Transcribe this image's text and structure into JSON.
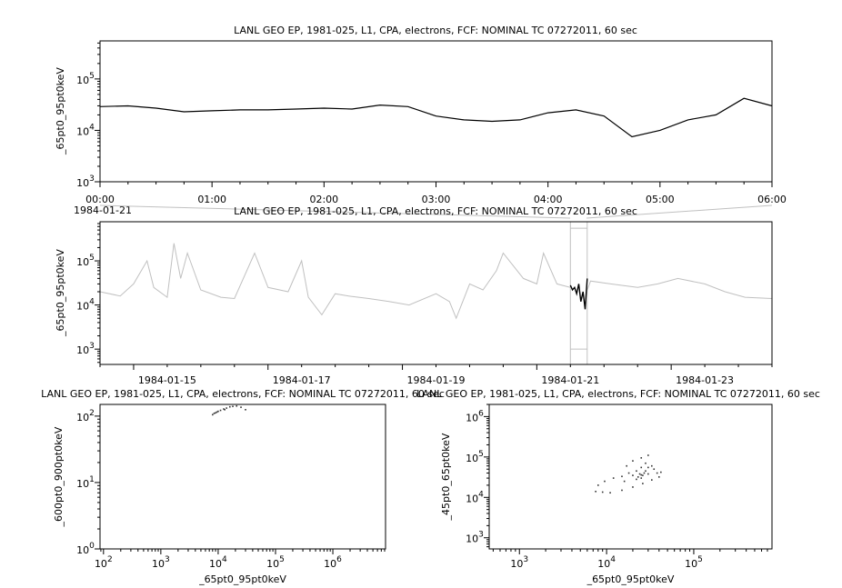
{
  "chart_data": [
    {
      "type": "line",
      "title": "LANL GEO EP, 1981-025, L1, CPA, electrons, FCF: NOMINAL TC 07272011, 60 sec",
      "ylabel": "_65pt0_95pt0keV",
      "xlabel": "",
      "x_date_label": "1984-01-21",
      "yscale": "log",
      "ylim": [
        1000,
        550000
      ],
      "xlim": [
        "00:00",
        "06:00"
      ],
      "x_tick_labels": [
        "00:00",
        "01:00",
        "02:00",
        "03:00",
        "04:00",
        "05:00",
        "06:00"
      ],
      "y_tick_labels": [
        {
          "base": "10",
          "exp": "3"
        },
        {
          "base": "10",
          "exp": "4"
        },
        {
          "base": "10",
          "exp": "5"
        }
      ],
      "color": "#000000",
      "x_hours": [
        0,
        0.25,
        0.5,
        0.75,
        1,
        1.25,
        1.5,
        1.75,
        2,
        2.25,
        2.5,
        2.75,
        3,
        3.25,
        3.5,
        3.75,
        4,
        4.25,
        4.5,
        4.75,
        5,
        5.25,
        5.5,
        5.75,
        6
      ],
      "values": [
        29000,
        30000,
        27000,
        23000,
        24000,
        25000,
        25000,
        26000,
        27000,
        26000,
        31000,
        29000,
        19000,
        16000,
        15000,
        16000,
        22000,
        25000,
        19000,
        7500,
        10000,
        16000,
        20000,
        42000,
        30000
      ]
    },
    {
      "type": "line",
      "title": "LANL GEO EP, 1981-025, L1, CPA, electrons, FCF: NOMINAL TC 07272011, 60 sec",
      "ylabel": "_65pt0_95pt0keV",
      "yscale": "log",
      "ylim": [
        450,
        770000
      ],
      "xlim": [
        "1984-01-14",
        "1984-01-24"
      ],
      "x_tick_labels": [
        "1984-01-15",
        "1984-01-17",
        "1984-01-19",
        "1984-01-21",
        "1984-01-23"
      ],
      "y_tick_labels": [
        {
          "base": "10",
          "exp": "3"
        },
        {
          "base": "10",
          "exp": "4"
        },
        {
          "base": "10",
          "exp": "5"
        }
      ],
      "color": "#c0c0c0",
      "highlight_color": "#000000",
      "highlight_range": [
        "1984-01-21T00:00",
        "1984-01-21T06:00"
      ],
      "x_days": [
        0,
        0.3,
        0.5,
        0.7,
        0.8,
        1.0,
        1.1,
        1.2,
        1.3,
        1.5,
        1.8,
        2.0,
        2.3,
        2.5,
        2.8,
        3.0,
        3.1,
        3.3,
        3.5,
        3.7,
        4.0,
        4.3,
        4.6,
        5.0,
        5.2,
        5.3,
        5.5,
        5.7,
        5.9,
        6.0,
        6.3,
        6.5,
        6.6,
        6.8,
        7.0,
        7.05,
        7.1,
        7.3,
        7.6,
        8.0,
        8.3,
        8.6,
        9.0,
        9.3,
        9.6,
        10.0
      ],
      "values": [
        20000,
        16000,
        30000,
        100000,
        25000,
        15000,
        250000,
        40000,
        150000,
        22000,
        15000,
        14000,
        150000,
        25000,
        20000,
        100000,
        15000,
        6000,
        18000,
        16000,
        14000,
        12000,
        10000,
        18000,
        12000,
        5000,
        30000,
        22000,
        60000,
        150000,
        40000,
        30000,
        150000,
        30000,
        25000,
        20000,
        5000,
        35000,
        30000,
        25000,
        30000,
        40000,
        30000,
        20000,
        15000,
        14000
      ]
    },
    {
      "type": "scatter",
      "title": "LANL GEO EP, 1981-025, L1, CPA, electrons, FCF: NOMINAL TC 07272011, 60 sec",
      "xlabel": "_65pt0_95pt0keV",
      "ylabel": "_600pt0_900pt0keV",
      "xscale": "log",
      "yscale": "log",
      "xlim": [
        87,
        8300000
      ],
      "ylim": [
        1,
        150
      ],
      "x_tick_labels": [
        {
          "base": "10",
          "exp": "2"
        },
        {
          "base": "10",
          "exp": "3"
        },
        {
          "base": "10",
          "exp": "4"
        },
        {
          "base": "10",
          "exp": "5"
        },
        {
          "base": "10",
          "exp": "6"
        }
      ],
      "y_tick_labels": [
        {
          "base": "10",
          "exp": "0"
        },
        {
          "base": "10",
          "exp": "1"
        },
        {
          "base": "10",
          "exp": "2"
        }
      ],
      "points": [
        [
          8000,
          105
        ],
        [
          8500,
          110
        ],
        [
          9000,
          112
        ],
        [
          10000,
          118
        ],
        [
          11000,
          122
        ],
        [
          12500,
          128
        ],
        [
          14000,
          132
        ],
        [
          16000,
          138
        ],
        [
          18000,
          140
        ],
        [
          21000,
          142
        ],
        [
          25000,
          136
        ],
        [
          30000,
          125
        ],
        [
          9500,
          115
        ],
        [
          13000,
          125
        ]
      ]
    },
    {
      "type": "scatter",
      "title": "LANL GEO EP, 1981-025, L1, CPA, electrons, FCF: NOMINAL TC 07272011, 60 sec",
      "xlabel": "_65pt0_95pt0keV",
      "ylabel": "_45pt0_65pt0keV",
      "xscale": "log",
      "yscale": "log",
      "xlim": [
        450,
        790000
      ],
      "ylim": [
        530,
        2000000
      ],
      "x_tick_labels": [
        {
          "base": "10",
          "exp": "3"
        },
        {
          "base": "10",
          "exp": "4"
        },
        {
          "base": "10",
          "exp": "5"
        }
      ],
      "y_tick_labels": [
        {
          "base": "10",
          "exp": "3"
        },
        {
          "base": "10",
          "exp": "4"
        },
        {
          "base": "10",
          "exp": "5"
        },
        {
          "base": "10",
          "exp": "6"
        }
      ],
      "points": [
        [
          7500,
          14000
        ],
        [
          8000,
          20000
        ],
        [
          9500,
          25000
        ],
        [
          12000,
          30000
        ],
        [
          15000,
          33000
        ],
        [
          20000,
          35000
        ],
        [
          25000,
          36000
        ],
        [
          30000,
          38000
        ],
        [
          38000,
          40000
        ],
        [
          42000,
          42000
        ],
        [
          40000,
          32000
        ],
        [
          33000,
          27000
        ],
        [
          26000,
          22000
        ],
        [
          20000,
          18000
        ],
        [
          15000,
          15000
        ],
        [
          11000,
          13000
        ],
        [
          9000,
          13500
        ],
        [
          16000,
          25000
        ],
        [
          18000,
          40000
        ],
        [
          17000,
          60000
        ],
        [
          20000,
          80000
        ],
        [
          25000,
          95000
        ],
        [
          30000,
          110000
        ],
        [
          28000,
          70000
        ],
        [
          25000,
          55000
        ],
        [
          22000,
          45000
        ],
        [
          24000,
          38000
        ],
        [
          26000,
          35000
        ],
        [
          23000,
          32000
        ],
        [
          27000,
          40000
        ],
        [
          25000,
          30000
        ],
        [
          28000,
          45000
        ],
        [
          22000,
          28000
        ],
        [
          30000,
          55000
        ],
        [
          33000,
          60000
        ],
        [
          35000,
          50000
        ]
      ]
    }
  ]
}
